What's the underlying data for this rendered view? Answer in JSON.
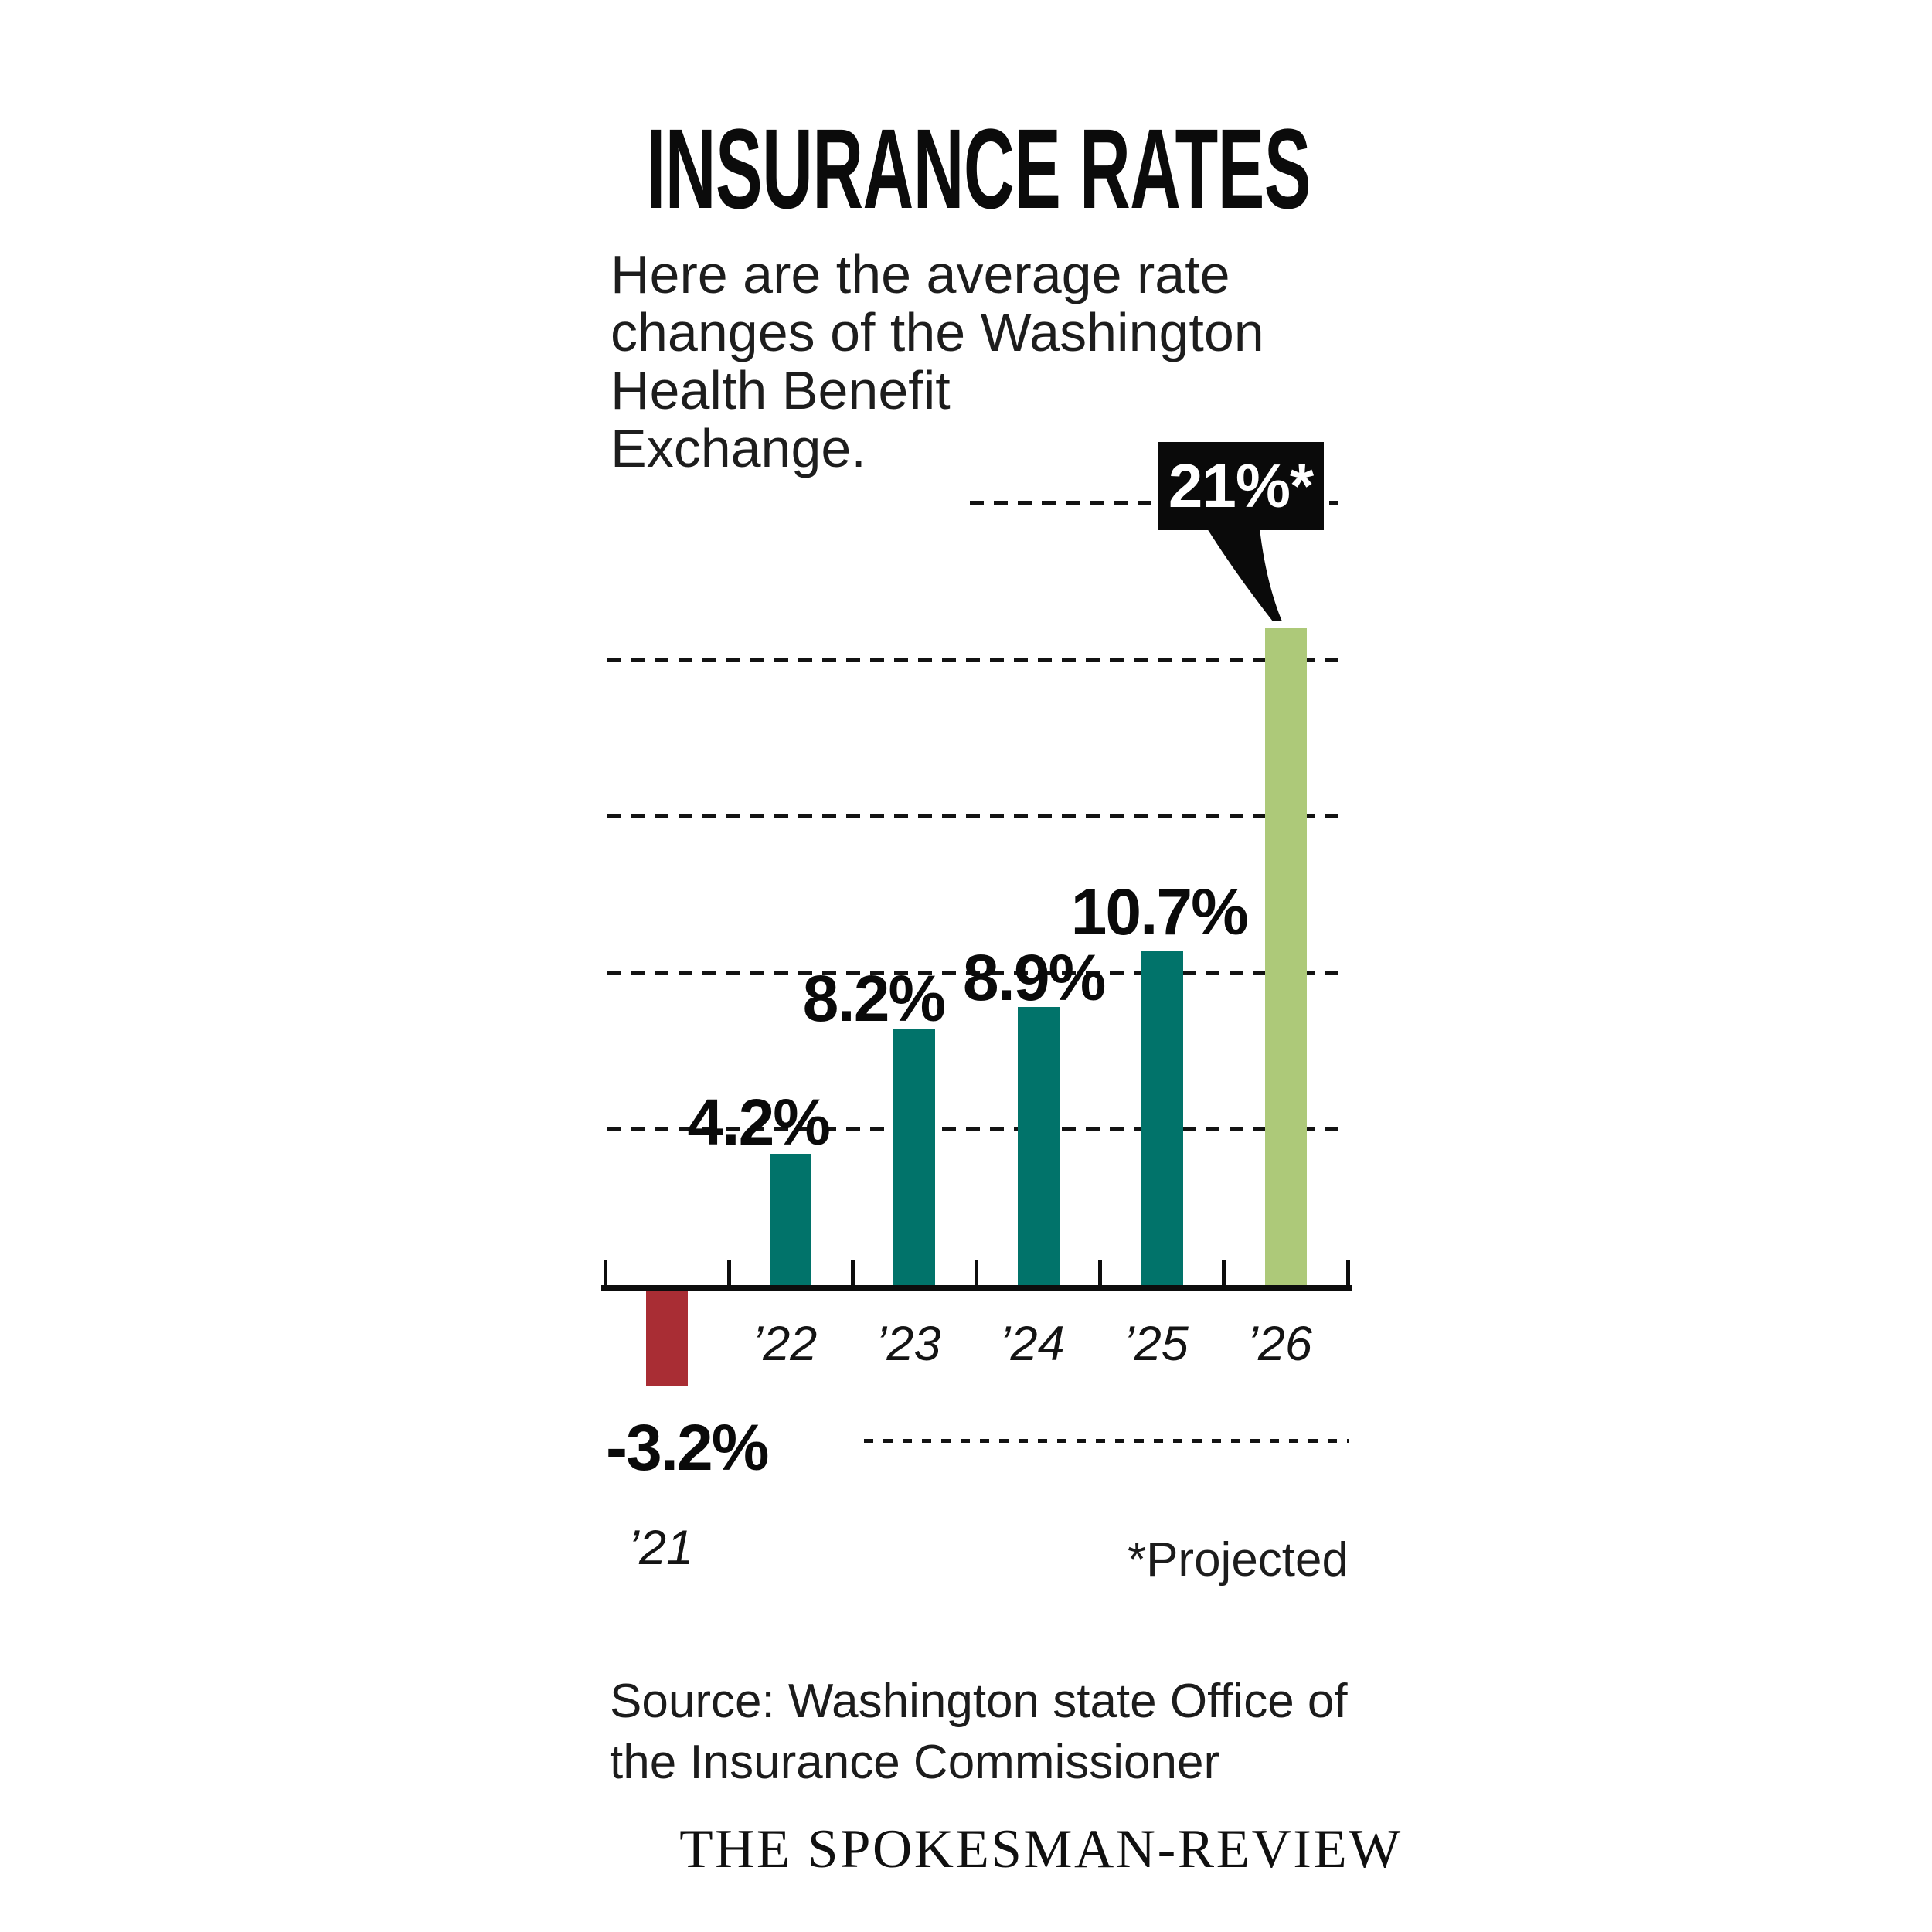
{
  "title": "INSURANCE RATES",
  "subtitle": {
    "lines": [
      "Here are the average rate",
      "changes of the Washington",
      "Health Benefit",
      "Exchange."
    ]
  },
  "callout": {
    "label": "21%*"
  },
  "footnote": "*Projected",
  "source": {
    "lines": [
      "Source: Washington state Office of",
      "the Insurance Commissioner"
    ]
  },
  "credit": "THE SPOKESMAN-REVIEW",
  "chart_data": {
    "type": "bar",
    "categories": [
      "’21",
      "’22",
      "’23",
      "’24",
      "’25",
      "’26"
    ],
    "values": [
      -3.2,
      4.2,
      8.2,
      8.9,
      10.7,
      21
    ],
    "labels": [
      "-3.2%",
      "4.2%",
      "8.2%",
      "8.9%",
      "10.7%",
      "21%*"
    ],
    "projected_index": 5,
    "title": "INSURANCE RATES",
    "xlabel": "",
    "ylabel": "",
    "ylim": [
      -5,
      27
    ],
    "gridlines_pct": [
      5,
      10,
      15,
      20,
      25
    ],
    "grid": "dashed-horizontal",
    "legend": "none",
    "colors": {
      "positive": "#01736a",
      "negative": "#a92d34",
      "projected": "#adc979",
      "ink": "#0d0d0d"
    }
  }
}
